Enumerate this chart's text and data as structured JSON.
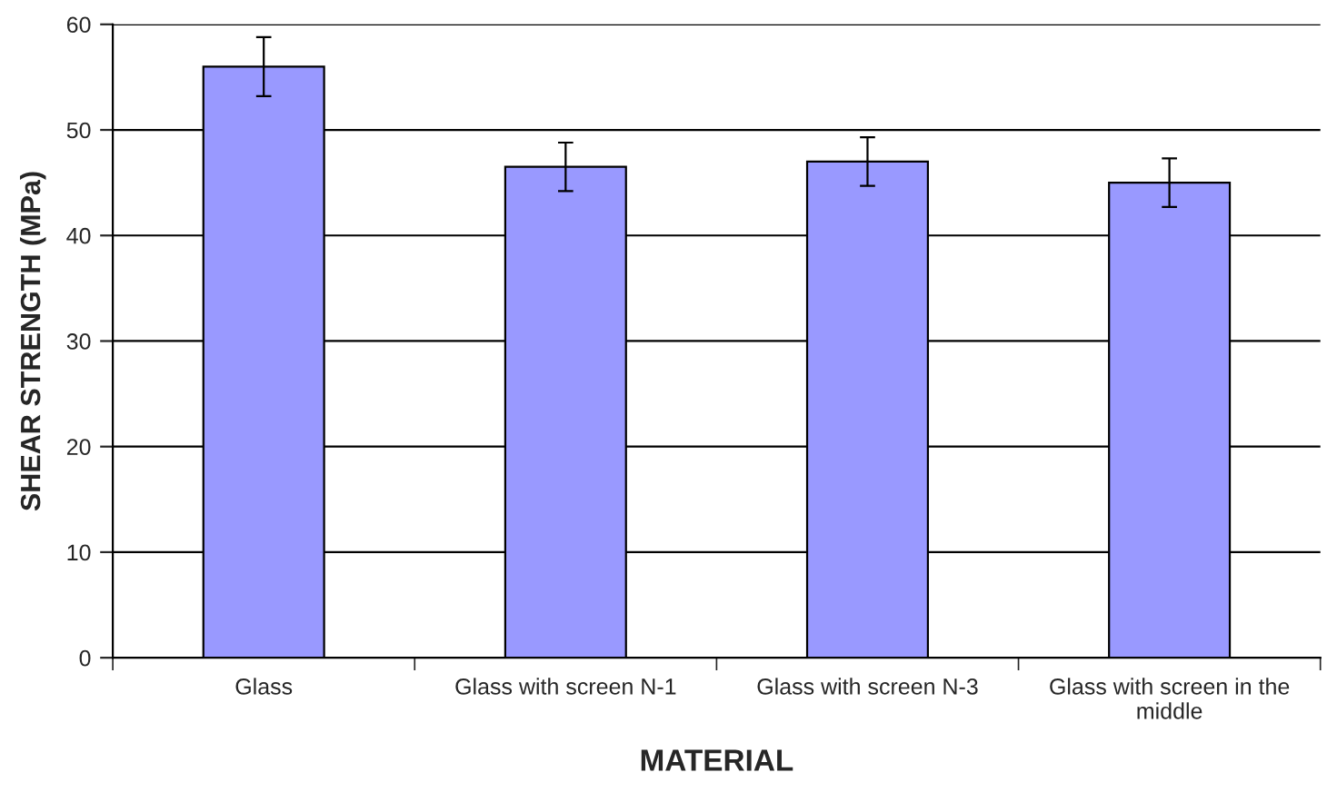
{
  "chart_data": {
    "type": "bar",
    "xlabel": "MATERIAL",
    "ylabel": "SHEAR STRENGTH (MPa)",
    "categories": [
      "Glass",
      "Glass with screen N-1",
      "Glass with screen N-3",
      "Glass with screen in the middle"
    ],
    "values": [
      56,
      46.5,
      47,
      45
    ],
    "errors": [
      2.8,
      2.3,
      2.3,
      2.3
    ],
    "color": "#9999ff",
    "ylim": [
      0,
      60
    ],
    "yticks": [
      0,
      10,
      20,
      30,
      40,
      50,
      60
    ],
    "grid": "y",
    "legend": false
  }
}
